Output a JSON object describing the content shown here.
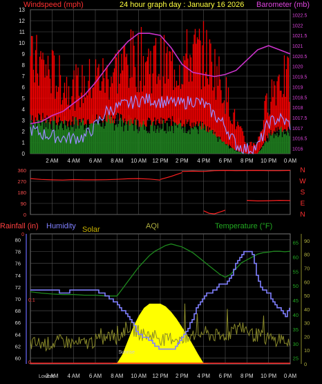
{
  "header": {
    "windspeed_label": "Windspeed (mph)",
    "title": "24 hour graph day : January 16 2026",
    "barometer_label": "Barometer (mb)"
  },
  "colors": {
    "wind": "#ff0000",
    "gust": "#ff0000",
    "avg": "#9a8cff",
    "wind_low": "#1e7a1e",
    "baro": "#cc33cc",
    "dir": "#ff2020",
    "humidity": "#8080ff",
    "solar": "#ffff00",
    "aqi": "#8a8a2a",
    "temperature": "#1e8a1e",
    "rain": "#ff2020",
    "grid": "#555555",
    "text": "#dddddd"
  },
  "time_labels": [
    "2 AM",
    "4 AM",
    "6 AM",
    "8 AM",
    "10 AM",
    "12 PM",
    "2 PM",
    "4 PM",
    "6 PM",
    "8 PM",
    "10 PM",
    "0 AM"
  ],
  "chart_data": [
    {
      "type": "line",
      "name": "wind-baro",
      "title": "24 hour graph day : January 16 2026",
      "ylabel": "Windspeed (mph)",
      "y2label": "Barometer (mb)",
      "ylim": [
        0,
        13
      ],
      "y2lim": [
        1015.75,
        1022.75
      ],
      "y_ticks": [
        0,
        1,
        2,
        3,
        4,
        5,
        6,
        7,
        8,
        9,
        10,
        11,
        12,
        13
      ],
      "y2_ticks": [
        "1016",
        "1016.5",
        "1017",
        "1017.5",
        "1018",
        "1018.5",
        "1019",
        "1019.5",
        "1020",
        "1020.5",
        "1021",
        "1021.5",
        "1022",
        "1022.5"
      ],
      "x_hours": [
        0,
        2,
        4,
        6,
        8,
        10,
        12,
        14,
        16,
        18,
        20,
        22,
        24
      ],
      "wind_gust_upper": [
        9.5,
        9.5,
        8.5,
        7.5,
        7,
        7.2,
        8.2,
        8,
        9,
        9.8,
        10,
        9.8,
        9.5,
        9.2,
        9.6,
        10.5,
        10.5,
        9.2,
        6.5,
        3.2,
        1,
        1.2,
        6,
        8.2,
        7.5
      ],
      "wind_avg": [
        2.2,
        1.8,
        1.6,
        1.4,
        1.4,
        1.5,
        2.5,
        3.8,
        4.2,
        4.5,
        4.8,
        4.9,
        4.7,
        4.6,
        4.5,
        4.8,
        4.5,
        3.5,
        2.5,
        0.8,
        0.4,
        0.6,
        2.8,
        3.2,
        2.6
      ],
      "wind_low_upper": [
        3.3,
        3.4,
        3.2,
        3.1,
        3.1,
        3.2,
        3.3,
        3.4,
        3.4,
        3.2,
        3,
        3,
        3,
        3.1,
        3,
        2.8,
        2.6,
        2,
        1,
        0.3,
        0,
        0,
        1.8,
        2.5,
        2.2
      ],
      "barometer": [
        1017.2,
        1017.3,
        1017.6,
        1017.8,
        1018.2,
        1018.6,
        1019.2,
        1019.9,
        1020.6,
        1021.2,
        1021.6,
        1021.6,
        1021.5,
        1020.9,
        1020.1,
        1019.7,
        1019.6,
        1019.5,
        1019.6,
        1019.8,
        1020.3,
        1020.8,
        1021.0,
        1020.8,
        1020.6
      ]
    },
    {
      "type": "scatter",
      "name": "wind-direction",
      "y_ticks": [
        "360",
        "270",
        "180",
        "90",
        "0"
      ],
      "compass": [
        "N",
        "W",
        "S",
        "E",
        "N"
      ],
      "ylim": [
        0,
        360
      ],
      "segments": [
        {
          "x": [
            0,
            1,
            2,
            3,
            4,
            5,
            6,
            7,
            8,
            9,
            10,
            11,
            12
          ],
          "y": [
            292,
            285,
            282,
            280,
            284,
            282,
            282,
            283,
            286,
            290,
            292,
            288,
            280
          ]
        },
        {
          "x": [
            12,
            13,
            14
          ],
          "y": [
            285,
            310,
            340
          ]
        },
        {
          "x": [
            14,
            15,
            16,
            17,
            18,
            19,
            20,
            21,
            22,
            23,
            24
          ],
          "y": [
            350,
            352,
            350,
            356,
            358,
            356,
            357,
            358,
            356,
            356,
            358
          ]
        },
        {
          "x": [
            16,
            16.5,
            17,
            17.5,
            18
          ],
          "y": [
            30,
            10,
            5,
            20,
            35
          ]
        },
        {
          "x": [
            20,
            21,
            22,
            23,
            24
          ],
          "y": [
            115,
            110,
            112,
            115,
            113
          ]
        }
      ]
    },
    {
      "type": "line",
      "name": "weather-lower",
      "headings": [
        "Rainfall (in)",
        "Humidity",
        "Solar",
        "AQI",
        "Temperature (°F)"
      ],
      "rain_axis_ticks": [
        "0",
        "0.1"
      ],
      "humidity_ylim": [
        59,
        81
      ],
      "humidity_ticks": [
        60,
        62,
        64,
        66,
        68,
        70,
        72,
        74,
        76,
        78,
        80
      ],
      "temp_ylim": [
        23,
        68
      ],
      "temp_ticks": [
        25,
        30,
        35,
        40,
        45,
        50,
        55,
        60,
        65
      ],
      "solar_ylim": [
        0,
        95
      ],
      "solar_ticks": [
        0,
        10,
        20,
        30,
        40,
        50,
        60,
        70,
        80,
        90
      ],
      "sunrise_label": "Sunrise",
      "lowest_label": "Lowest",
      "x_hours": [
        0,
        1,
        2,
        3,
        4,
        5,
        6,
        7,
        7.5,
        8,
        8.5,
        9,
        9.5,
        10,
        10.5,
        11,
        11.5,
        12,
        12.5,
        13,
        13.5,
        14,
        14.5,
        15,
        15.5,
        16,
        16.5,
        17,
        17.5,
        18,
        18.5,
        19,
        19.5,
        20,
        20.5,
        21,
        21.5,
        22,
        22.5,
        23,
        23.5,
        24
      ],
      "humidity": [
        71.5,
        71.5,
        71.5,
        71,
        71.5,
        71.5,
        71.5,
        70.5,
        70,
        69,
        68,
        67,
        65.5,
        64,
        63.5,
        63,
        62,
        61.5,
        61.5,
        61.5,
        62,
        63.5,
        65,
        67,
        69,
        70.5,
        71,
        71.5,
        72.5,
        72.5,
        73.5,
        76,
        77.5,
        78.2,
        77.5,
        73,
        71.5,
        71,
        69,
        68.5,
        67,
        68.8
      ],
      "temperature": [
        48,
        47.5,
        47.2,
        47,
        47,
        46.8,
        46.8,
        46.5,
        46.5,
        46.5,
        49,
        51.5,
        54,
        56.5,
        58.5,
        60.5,
        62,
        63,
        64,
        64.5,
        64,
        63.5,
        62.5,
        61.5,
        60,
        58.5,
        57,
        55.5,
        54,
        53,
        54,
        56,
        58,
        59,
        60,
        61,
        61.5,
        61.7,
        62,
        62,
        61.8,
        62
      ],
      "aqi": [
        30,
        30,
        30,
        31,
        30,
        30,
        31,
        32,
        33,
        31,
        34,
        36,
        35,
        34,
        33,
        33,
        33,
        32,
        31,
        32,
        32,
        31,
        31,
        33,
        33,
        34,
        33,
        33,
        32,
        33,
        34,
        35,
        36,
        35,
        33,
        33,
        32,
        32,
        31,
        32,
        31,
        30
      ],
      "solar": [
        0,
        0,
        0,
        0,
        0,
        0,
        0,
        0,
        0,
        0.5,
        7,
        17,
        27,
        35,
        41,
        44,
        44,
        44,
        42,
        38,
        33,
        27,
        21,
        14,
        7,
        0.5,
        0,
        0,
        0,
        0,
        0,
        0,
        0,
        0,
        0,
        0,
        0,
        0,
        0,
        0,
        0,
        0
      ]
    }
  ]
}
